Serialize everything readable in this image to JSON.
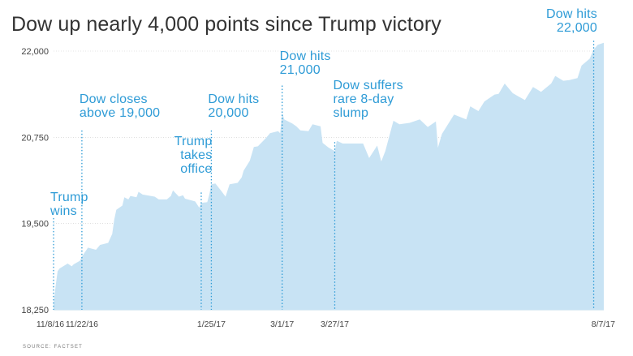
{
  "title": "Dow up nearly 4,000 points since Trump victory",
  "source": "SOURCE: FACTSET",
  "colors": {
    "area_fill": "#c8e3f4",
    "annotation": "#2e9bd6",
    "marker_line": "#2e9bd6",
    "axis_text": "#444444",
    "grid": "#cccccc"
  },
  "chart_data": {
    "type": "area",
    "title": "Dow up nearly 4,000 points since Trump victory",
    "xlabel": "",
    "ylabel": "",
    "ylim": [
      18250,
      22000
    ],
    "yticks": [
      22000,
      20750,
      19500,
      18250
    ],
    "ytick_labels": [
      "22,000",
      "20,750",
      "19,500",
      "18,250"
    ],
    "xticks": [
      {
        "date": "2016-11-08",
        "label": "11/8/16"
      },
      {
        "date": "2016-11-22",
        "label": "11/22/16"
      },
      {
        "date": "2017-01-25",
        "label": "1/25/17"
      },
      {
        "date": "2017-03-01",
        "label": "3/1/17"
      },
      {
        "date": "2017-03-27",
        "label": "3/27/17"
      },
      {
        "date": "2017-08-07",
        "label": "8/7/17"
      }
    ],
    "series": [
      {
        "values": [
          [
            "2016-11-08",
            18330
          ],
          [
            "2016-11-09",
            18590
          ],
          [
            "2016-11-10",
            18810
          ],
          [
            "2016-11-11",
            18850
          ],
          [
            "2016-11-15",
            18920
          ],
          [
            "2016-11-17",
            18880
          ],
          [
            "2016-11-18",
            18910
          ],
          [
            "2016-11-21",
            18960
          ],
          [
            "2016-11-22",
            19020
          ],
          [
            "2016-11-25",
            19150
          ],
          [
            "2016-11-29",
            19120
          ],
          [
            "2016-12-01",
            19190
          ],
          [
            "2016-12-05",
            19220
          ],
          [
            "2016-12-07",
            19350
          ],
          [
            "2016-12-08",
            19560
          ],
          [
            "2016-12-09",
            19700
          ],
          [
            "2016-12-12",
            19760
          ],
          [
            "2016-12-13",
            19880
          ],
          [
            "2016-12-15",
            19850
          ],
          [
            "2016-12-16",
            19900
          ],
          [
            "2016-12-19",
            19880
          ],
          [
            "2016-12-20",
            19960
          ],
          [
            "2016-12-22",
            19920
          ],
          [
            "2016-12-28",
            19890
          ],
          [
            "2016-12-30",
            19850
          ],
          [
            "2017-01-03",
            19850
          ],
          [
            "2017-01-05",
            19900
          ],
          [
            "2017-01-06",
            19980
          ],
          [
            "2017-01-09",
            19890
          ],
          [
            "2017-01-11",
            19910
          ],
          [
            "2017-01-12",
            19860
          ],
          [
            "2017-01-17",
            19820
          ],
          [
            "2017-01-19",
            19730
          ],
          [
            "2017-01-20",
            19800
          ],
          [
            "2017-01-23",
            19810
          ],
          [
            "2017-01-24",
            19920
          ],
          [
            "2017-01-25",
            20070
          ],
          [
            "2017-01-27",
            20080
          ],
          [
            "2017-01-30",
            19970
          ],
          [
            "2017-02-01",
            19890
          ],
          [
            "2017-02-03",
            20070
          ],
          [
            "2017-02-07",
            20090
          ],
          [
            "2017-02-09",
            20170
          ],
          [
            "2017-02-10",
            20270
          ],
          [
            "2017-02-13",
            20410
          ],
          [
            "2017-02-15",
            20610
          ],
          [
            "2017-02-17",
            20620
          ],
          [
            "2017-02-21",
            20740
          ],
          [
            "2017-02-23",
            20810
          ],
          [
            "2017-02-27",
            20840
          ],
          [
            "2017-02-28",
            20810
          ],
          [
            "2017-03-01",
            21110
          ],
          [
            "2017-03-02",
            21010
          ],
          [
            "2017-03-06",
            20950
          ],
          [
            "2017-03-08",
            20910
          ],
          [
            "2017-03-10",
            20850
          ],
          [
            "2017-03-14",
            20840
          ],
          [
            "2017-03-16",
            20940
          ],
          [
            "2017-03-20",
            20910
          ],
          [
            "2017-03-21",
            20670
          ],
          [
            "2017-03-24",
            20600
          ],
          [
            "2017-03-27",
            20550
          ],
          [
            "2017-03-28",
            20700
          ],
          [
            "2017-03-31",
            20660
          ],
          [
            "2017-04-05",
            20660
          ],
          [
            "2017-04-10",
            20660
          ],
          [
            "2017-04-13",
            20450
          ],
          [
            "2017-04-17",
            20630
          ],
          [
            "2017-04-19",
            20400
          ],
          [
            "2017-04-21",
            20550
          ],
          [
            "2017-04-25",
            20990
          ],
          [
            "2017-04-28",
            20940
          ],
          [
            "2017-05-03",
            20960
          ],
          [
            "2017-05-08",
            21010
          ],
          [
            "2017-05-12",
            20900
          ],
          [
            "2017-05-16",
            20980
          ],
          [
            "2017-05-17",
            20600
          ],
          [
            "2017-05-19",
            20800
          ],
          [
            "2017-05-25",
            21080
          ],
          [
            "2017-05-31",
            21010
          ],
          [
            "2017-06-02",
            21200
          ],
          [
            "2017-06-06",
            21130
          ],
          [
            "2017-06-09",
            21270
          ],
          [
            "2017-06-14",
            21370
          ],
          [
            "2017-06-16",
            21380
          ],
          [
            "2017-06-19",
            21530
          ],
          [
            "2017-06-23",
            21390
          ],
          [
            "2017-06-29",
            21290
          ],
          [
            "2017-07-03",
            21480
          ],
          [
            "2017-07-07",
            21410
          ],
          [
            "2017-07-12",
            21530
          ],
          [
            "2017-07-14",
            21640
          ],
          [
            "2017-07-18",
            21570
          ],
          [
            "2017-07-21",
            21580
          ],
          [
            "2017-07-25",
            21610
          ],
          [
            "2017-07-27",
            21790
          ],
          [
            "2017-07-31",
            21890
          ],
          [
            "2017-08-02",
            22020
          ],
          [
            "2017-08-04",
            22090
          ],
          [
            "2017-08-07",
            22120
          ]
        ]
      }
    ],
    "annotations": [
      {
        "date": "2016-11-08",
        "value": 19580,
        "text": "Trump\nwins"
      },
      {
        "date": "2016-11-22",
        "value": 21000,
        "text": "Dow closes\nabove 19,000"
      },
      {
        "date": "2017-01-25",
        "value": 20190,
        "text": "Trump\ntakes\noffice"
      },
      {
        "date": "2017-01-25",
        "value": 21000,
        "text": "Dow hits\n20,000"
      },
      {
        "date": "2017-03-01",
        "value": 21620,
        "text": "Dow hits\n21,000"
      },
      {
        "date": "2017-03-27",
        "value": 21000,
        "text": "Dow suffers\nrare 8-day\nslump"
      },
      {
        "date": "2017-08-07",
        "value": 22230,
        "text": "Dow hits\n22,000"
      }
    ],
    "marker_lines": [
      "2016-11-08",
      "2016-11-22",
      "2017-01-20",
      "2017-01-25",
      "2017-03-01",
      "2017-03-27",
      "2017-08-02"
    ],
    "grid": true,
    "legend": "none"
  }
}
